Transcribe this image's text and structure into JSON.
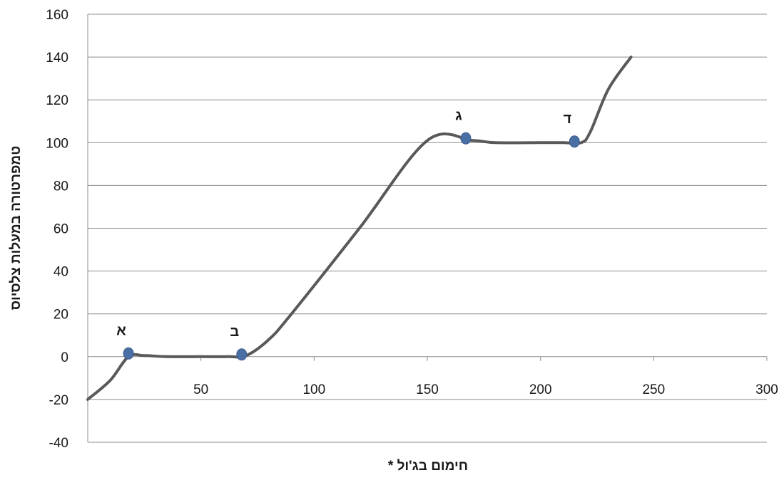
{
  "chart_data": {
    "type": "line",
    "title": "",
    "xlabel": "חימום בג'ול *",
    "ylabel": "טמפרטורה במעלות צלסיוס",
    "xlim": [
      0,
      300
    ],
    "ylim": [
      -40,
      160
    ],
    "x_ticks": [
      50,
      100,
      150,
      200,
      250,
      300
    ],
    "y_ticks": [
      -40,
      -20,
      0,
      20,
      40,
      60,
      80,
      100,
      120,
      140,
      160
    ],
    "grid": "horizontal",
    "line_color": "#595959",
    "marker_color": "#4a6fa5",
    "series": [
      {
        "x": [
          0,
          10,
          18,
          25,
          35,
          50,
          62,
          70,
          80,
          90,
          120,
          150,
          170,
          180,
          200,
          210,
          218,
          222,
          230,
          240
        ],
        "y": [
          -20,
          -11,
          0,
          0.5,
          0,
          0,
          0,
          0.5,
          8,
          20,
          60,
          101,
          101,
          100,
          100,
          100,
          100,
          105,
          125,
          140
        ]
      }
    ],
    "annotations": [
      {
        "label": "א",
        "x": 18,
        "y": 1.5
      },
      {
        "label": "ב",
        "x": 68,
        "y": 1
      },
      {
        "label": "ג",
        "x": 167,
        "y": 102
      },
      {
        "label": "ד",
        "x": 215,
        "y": 100.5
      }
    ]
  }
}
